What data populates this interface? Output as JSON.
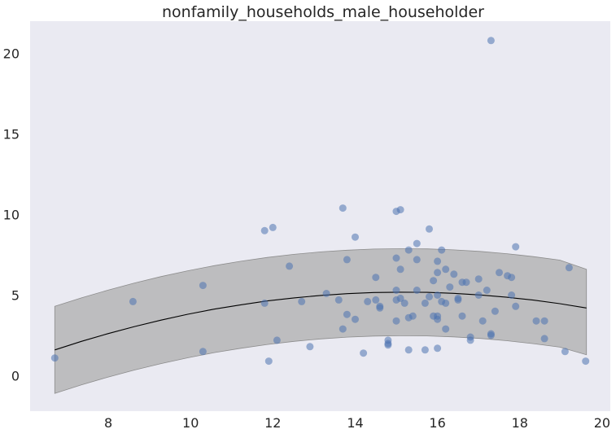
{
  "chart_data": {
    "type": "scatter",
    "title": "nonfamily_households_male_householder",
    "xlabel": "",
    "ylabel": "",
    "xlim": [
      6.1,
      20.2
    ],
    "ylim": [
      -2.2,
      22.0
    ],
    "xticks": [
      8,
      10,
      12,
      14,
      16,
      18,
      20
    ],
    "yticks": [
      0,
      5,
      10,
      15,
      20
    ],
    "grid": false,
    "legend": "none",
    "colors": {
      "background": "#eaeaf2",
      "points": "#4c72b0",
      "band": "#a9a9a9",
      "fit_line": "#000000"
    },
    "points": [
      [
        6.7,
        1.1
      ],
      [
        8.6,
        4.6
      ],
      [
        10.3,
        5.6
      ],
      [
        10.3,
        1.5
      ],
      [
        11.8,
        9.0
      ],
      [
        11.8,
        4.5
      ],
      [
        11.9,
        0.9
      ],
      [
        12.0,
        9.2
      ],
      [
        12.1,
        2.2
      ],
      [
        12.4,
        6.8
      ],
      [
        12.7,
        4.6
      ],
      [
        12.9,
        1.8
      ],
      [
        13.3,
        5.1
      ],
      [
        13.6,
        4.7
      ],
      [
        13.7,
        10.4
      ],
      [
        13.7,
        2.9
      ],
      [
        13.8,
        7.2
      ],
      [
        13.8,
        3.8
      ],
      [
        14.0,
        8.6
      ],
      [
        14.0,
        3.5
      ],
      [
        14.2,
        1.4
      ],
      [
        14.3,
        4.6
      ],
      [
        14.5,
        6.1
      ],
      [
        14.5,
        4.7
      ],
      [
        14.6,
        4.3
      ],
      [
        14.6,
        4.2
      ],
      [
        14.8,
        2.2
      ],
      [
        14.8,
        2.0
      ],
      [
        14.8,
        1.9
      ],
      [
        15.0,
        10.2
      ],
      [
        15.0,
        7.3
      ],
      [
        15.0,
        5.3
      ],
      [
        15.0,
        4.7
      ],
      [
        15.0,
        3.4
      ],
      [
        15.1,
        10.3
      ],
      [
        15.1,
        6.6
      ],
      [
        15.1,
        4.8
      ],
      [
        15.2,
        4.5
      ],
      [
        15.3,
        7.8
      ],
      [
        15.3,
        3.6
      ],
      [
        15.3,
        1.6
      ],
      [
        15.4,
        3.7
      ],
      [
        15.5,
        8.2
      ],
      [
        15.5,
        7.2
      ],
      [
        15.5,
        5.3
      ],
      [
        15.7,
        4.5
      ],
      [
        15.7,
        1.6
      ],
      [
        15.8,
        9.1
      ],
      [
        15.8,
        4.9
      ],
      [
        15.9,
        5.9
      ],
      [
        15.9,
        3.7
      ],
      [
        16.0,
        7.1
      ],
      [
        16.0,
        6.4
      ],
      [
        16.0,
        5.0
      ],
      [
        16.0,
        3.7
      ],
      [
        16.0,
        3.5
      ],
      [
        16.0,
        1.7
      ],
      [
        16.1,
        7.8
      ],
      [
        16.1,
        4.6
      ],
      [
        16.2,
        6.6
      ],
      [
        16.2,
        4.5
      ],
      [
        16.2,
        2.9
      ],
      [
        16.3,
        5.5
      ],
      [
        16.4,
        6.3
      ],
      [
        16.5,
        4.8
      ],
      [
        16.5,
        4.7
      ],
      [
        16.6,
        5.8
      ],
      [
        16.6,
        3.7
      ],
      [
        16.7,
        5.8
      ],
      [
        16.8,
        2.4
      ],
      [
        16.8,
        2.2
      ],
      [
        17.0,
        6.0
      ],
      [
        17.0,
        5.0
      ],
      [
        17.1,
        3.4
      ],
      [
        17.2,
        5.3
      ],
      [
        17.3,
        20.8
      ],
      [
        17.3,
        2.6
      ],
      [
        17.3,
        2.5
      ],
      [
        17.4,
        4.0
      ],
      [
        17.5,
        6.4
      ],
      [
        17.7,
        6.2
      ],
      [
        17.8,
        6.1
      ],
      [
        17.8,
        5.0
      ],
      [
        17.9,
        8.0
      ],
      [
        17.9,
        4.3
      ],
      [
        18.4,
        3.4
      ],
      [
        18.6,
        3.4
      ],
      [
        18.6,
        2.3
      ],
      [
        19.1,
        1.5
      ],
      [
        19.2,
        6.7
      ],
      [
        19.6,
        0.9
      ]
    ],
    "fit_line": {
      "x": [
        6.7,
        7.346,
        7.992,
        8.638,
        9.284,
        9.93,
        10.576,
        11.222,
        11.868,
        12.514,
        13.16,
        13.806,
        14.452,
        15.098,
        15.744,
        16.39,
        17.036,
        17.682,
        18.328,
        18.974,
        19.62
      ],
      "y": [
        1.6,
        2.13,
        2.61,
        3.05,
        3.45,
        3.81,
        4.13,
        4.4,
        4.64,
        4.83,
        4.98,
        5.09,
        5.16,
        5.18,
        5.17,
        5.11,
        5.01,
        4.87,
        4.69,
        4.47,
        4.2
      ]
    },
    "band": {
      "upper": [
        4.3,
        4.83,
        5.31,
        5.75,
        6.15,
        6.51,
        6.83,
        7.1,
        7.34,
        7.53,
        7.68,
        7.79,
        7.86,
        7.88,
        7.87,
        7.81,
        7.71,
        7.57,
        7.39,
        7.17,
        6.6
      ],
      "lower": [
        -1.1,
        -0.57,
        -0.09,
        0.35,
        0.75,
        1.11,
        1.43,
        1.7,
        1.94,
        2.13,
        2.28,
        2.39,
        2.46,
        2.48,
        2.47,
        2.41,
        2.31,
        2.17,
        1.99,
        1.77,
        1.3
      ]
    }
  }
}
